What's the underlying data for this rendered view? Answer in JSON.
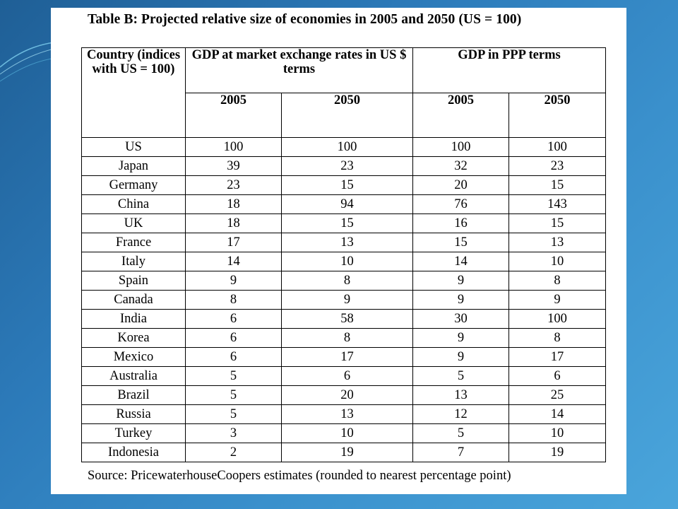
{
  "title": "Table B: Projected relative size of economies in 2005 and 2050 (US = 100)",
  "table": {
    "country_header": "Country (indices with US = 100)",
    "groups": [
      "GDP at market exchange rates in US $ terms",
      "GDP in PPP terms"
    ],
    "years": [
      "2005",
      "2050",
      "2005",
      "2050"
    ],
    "rows": [
      [
        "US",
        "100",
        "100",
        "100",
        "100"
      ],
      [
        "Japan",
        "39",
        "23",
        "32",
        "23"
      ],
      [
        "Germany",
        "23",
        "15",
        "20",
        "15"
      ],
      [
        "China",
        "18",
        "94",
        "76",
        "143"
      ],
      [
        "UK",
        "18",
        "15",
        "16",
        "15"
      ],
      [
        "France",
        "17",
        "13",
        "15",
        "13"
      ],
      [
        "Italy",
        "14",
        "10",
        "14",
        "10"
      ],
      [
        "Spain",
        "9",
        "8",
        "9",
        "8"
      ],
      [
        "Canada",
        "8",
        "9",
        "9",
        "9"
      ],
      [
        "India",
        "6",
        "58",
        "30",
        "100"
      ],
      [
        "Korea",
        "6",
        "8",
        "9",
        "8"
      ],
      [
        "Mexico",
        "6",
        "17",
        "9",
        "17"
      ],
      [
        "Australia",
        "5",
        "6",
        "5",
        "6"
      ],
      [
        "Brazil",
        "5",
        "20",
        "13",
        "25"
      ],
      [
        "Russia",
        "5",
        "13",
        "12",
        "14"
      ],
      [
        "Turkey",
        "3",
        "10",
        "5",
        "10"
      ],
      [
        "Indonesia",
        "2",
        "19",
        "7",
        "19"
      ]
    ]
  },
  "source": "Source: PricewaterhouseCoopers estimates (rounded to nearest percentage point)",
  "colors": {
    "background_dark": "#1f5f96",
    "background_light": "#4aa5db",
    "panel": "#ffffff",
    "text": "#000000"
  }
}
